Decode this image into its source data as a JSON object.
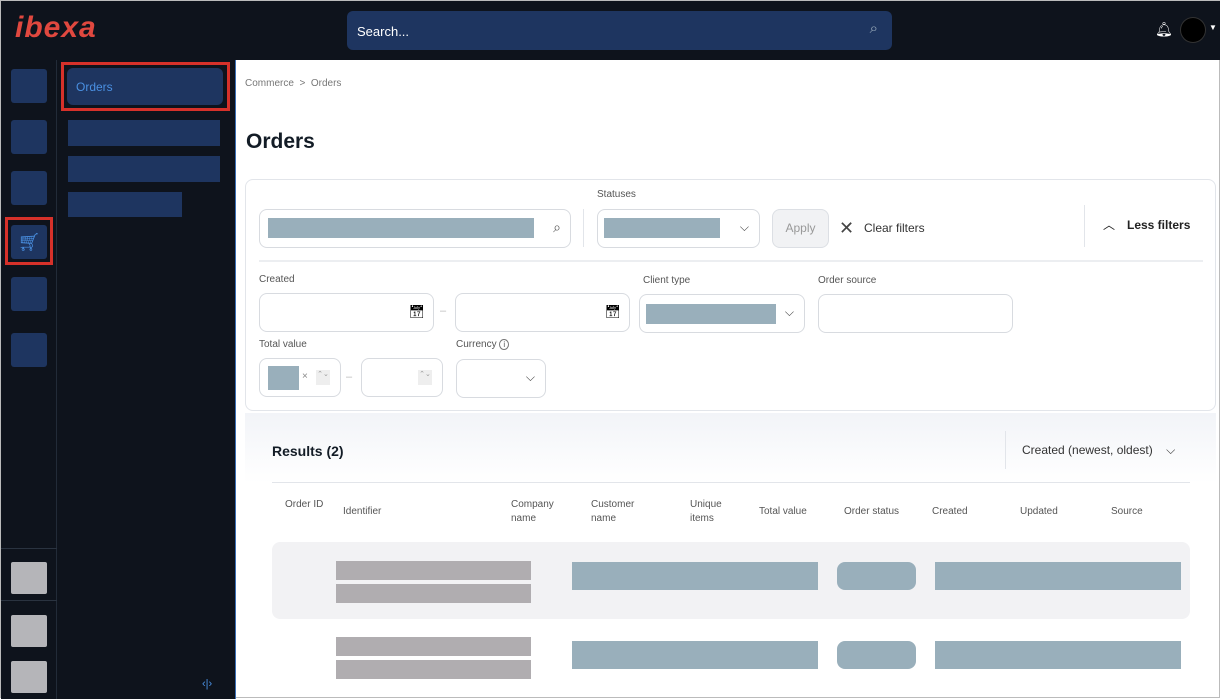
{
  "header": {
    "logo": "ibexa",
    "search_placeholder": "Search..."
  },
  "sidebar": {
    "active_item": "Orders"
  },
  "breadcrumb": [
    "Commerce",
    ">",
    "Orders"
  ],
  "page_title": "Orders",
  "filters": {
    "statuses_label": "Statuses",
    "apply": "Apply",
    "clear": "Clear filters",
    "less": "Less filters",
    "created": "Created",
    "client_type": "Client type",
    "order_source": "Order source",
    "total_value": "Total value",
    "currency": "Currency",
    "range_sep": "–"
  },
  "results": {
    "title": "Results (2)",
    "sort": "Created (newest, oldest)",
    "columns": [
      "Order ID",
      "Identifier",
      "Company name",
      "Customer name",
      "Unique items",
      "Total value",
      "Order status",
      "Created",
      "Updated",
      "Source"
    ]
  }
}
